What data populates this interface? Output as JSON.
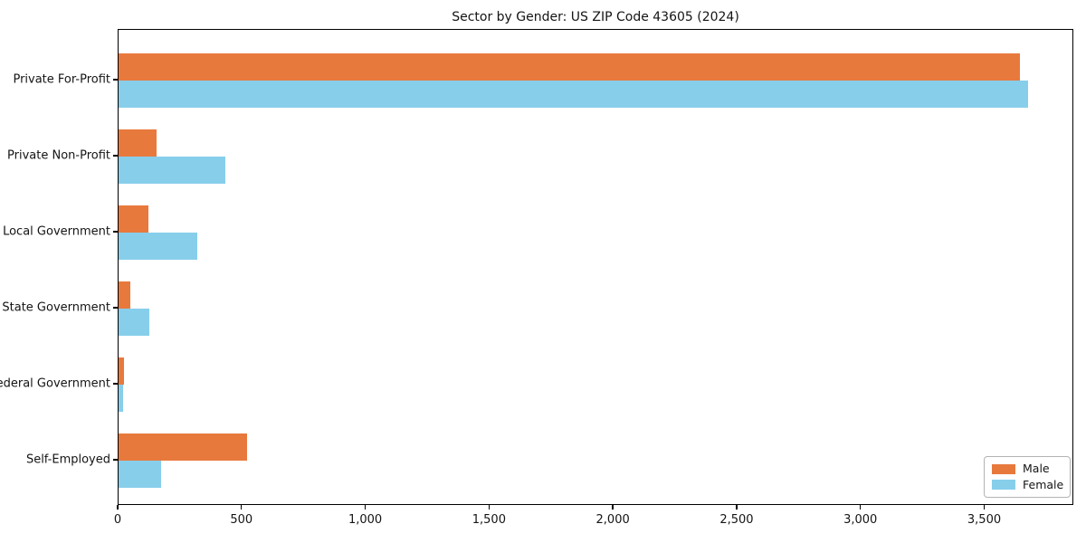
{
  "title": "Sector by Gender: US ZIP Code 43605 (2024)",
  "colors": {
    "male": "#e8793d",
    "female": "#87ceeb",
    "spine": "#000000",
    "legend_border": "#b3b3b3",
    "text": "#141414"
  },
  "chart_data": {
    "type": "bar",
    "orientation": "horizontal",
    "title": "Sector by Gender: US ZIP Code 43605 (2024)",
    "categories": [
      "Private For-Profit",
      "Private Non-Profit",
      "Local Government",
      "State Government",
      "Federal Government",
      "Self-Employed"
    ],
    "series": [
      {
        "name": "Male",
        "color": "#e8793d",
        "values": [
          3640,
          153,
          119,
          46,
          23,
          520
        ]
      },
      {
        "name": "Female",
        "color": "#87ceeb",
        "values": [
          3675,
          433,
          317,
          123,
          20,
          171
        ]
      }
    ],
    "xlabel": "",
    "ylabel": "",
    "xlim": [
      0,
      3860
    ],
    "xticks": [
      0,
      500,
      1000,
      1500,
      2000,
      2500,
      3000,
      3500
    ],
    "xtick_labels": [
      "0",
      "500",
      "1,000",
      "1,500",
      "2,000",
      "2,500",
      "3,000",
      "3,500"
    ],
    "grid": false,
    "legend": {
      "position": "lower right",
      "entries": [
        "Male",
        "Female"
      ]
    }
  }
}
